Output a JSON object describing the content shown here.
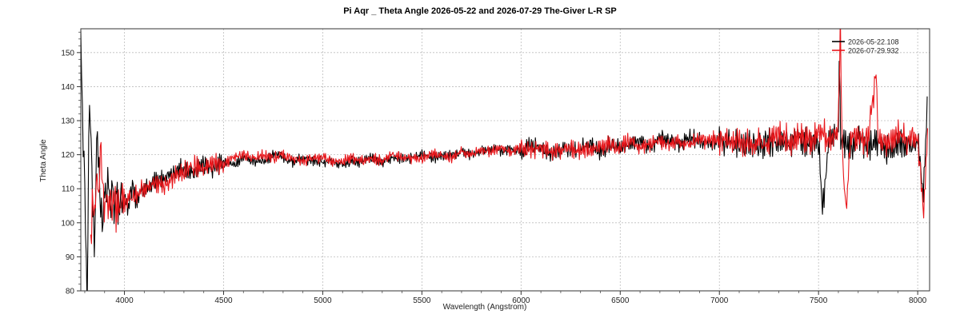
{
  "chart_data": {
    "type": "line",
    "title": "Pi Aqr _ Theta Angle 2026-05-22  and 2026-07-29 The-Giver L-R SP",
    "xlabel": "Wavelength (Angstrom)",
    "ylabel": "Theta Angle",
    "xlim": [
      3780,
      8060
    ],
    "ylim": [
      80,
      157
    ],
    "xticks": [
      4000,
      4500,
      5000,
      5500,
      6000,
      6500,
      7000,
      7500,
      8000
    ],
    "yticks": [
      80,
      90,
      100,
      110,
      120,
      130,
      140,
      150
    ],
    "grid": true,
    "legend_position": "top-right",
    "series": [
      {
        "name": "2026-05-22.108",
        "color": "#000000",
        "points": [
          [
            3780,
            157
          ],
          [
            3790,
            128
          ],
          [
            3800,
            112
          ],
          [
            3810,
            80
          ],
          [
            3815,
            80
          ],
          [
            3820,
            131
          ],
          [
            3830,
            131
          ],
          [
            3840,
            104
          ],
          [
            3850,
            91
          ],
          [
            3860,
            126
          ],
          [
            3870,
            118
          ],
          [
            3880,
            104
          ],
          [
            3890,
            97
          ],
          [
            3900,
            112
          ],
          [
            3910,
            106
          ],
          [
            3920,
            114
          ],
          [
            3930,
            103
          ],
          [
            3940,
            111
          ],
          [
            3950,
            102
          ],
          [
            3960,
            113
          ],
          [
            3970,
            104
          ],
          [
            3980,
            110
          ],
          [
            3990,
            103
          ],
          [
            4000,
            108
          ],
          [
            4020,
            104
          ],
          [
            4040,
            111
          ],
          [
            4060,
            106
          ],
          [
            4080,
            110
          ],
          [
            4100,
            109
          ],
          [
            4150,
            112
          ],
          [
            4200,
            113
          ],
          [
            4250,
            115
          ],
          [
            4300,
            116
          ],
          [
            4350,
            115
          ],
          [
            4400,
            117
          ],
          [
            4450,
            116
          ],
          [
            4500,
            118
          ],
          [
            4550,
            117
          ],
          [
            4600,
            119
          ],
          [
            4650,
            118
          ],
          [
            4700,
            118
          ],
          [
            4750,
            120
          ],
          [
            4800,
            119
          ],
          [
            4850,
            118
          ],
          [
            4900,
            119
          ],
          [
            4950,
            118
          ],
          [
            5000,
            118
          ],
          [
            5050,
            118
          ],
          [
            5100,
            117
          ],
          [
            5150,
            118
          ],
          [
            5200,
            118
          ],
          [
            5250,
            119
          ],
          [
            5300,
            118
          ],
          [
            5350,
            119
          ],
          [
            5400,
            119
          ],
          [
            5450,
            119
          ],
          [
            5500,
            120
          ],
          [
            5550,
            119
          ],
          [
            5600,
            120
          ],
          [
            5650,
            120
          ],
          [
            5700,
            121
          ],
          [
            5750,
            120
          ],
          [
            5800,
            121
          ],
          [
            5850,
            122
          ],
          [
            5900,
            121
          ],
          [
            5950,
            122
          ],
          [
            6000,
            121
          ],
          [
            6050,
            123
          ],
          [
            6100,
            122
          ],
          [
            6150,
            120
          ],
          [
            6200,
            122
          ],
          [
            6250,
            121
          ],
          [
            6300,
            122
          ],
          [
            6350,
            123
          ],
          [
            6400,
            121
          ],
          [
            6450,
            123
          ],
          [
            6500,
            122
          ],
          [
            6550,
            123
          ],
          [
            6600,
            124
          ],
          [
            6650,
            122
          ],
          [
            6700,
            125
          ],
          [
            6750,
            124
          ],
          [
            6800,
            123
          ],
          [
            6850,
            125
          ],
          [
            6900,
            124
          ],
          [
            6950,
            123
          ],
          [
            7000,
            124
          ],
          [
            7050,
            124
          ],
          [
            7100,
            123
          ],
          [
            7150,
            124
          ],
          [
            7200,
            122
          ],
          [
            7250,
            124
          ],
          [
            7300,
            124
          ],
          [
            7350,
            123
          ],
          [
            7400,
            125
          ],
          [
            7450,
            123
          ],
          [
            7500,
            124
          ],
          [
            7520,
            103
          ],
          [
            7550,
            124
          ],
          [
            7600,
            126
          ],
          [
            7605,
            158
          ],
          [
            7610,
            125
          ],
          [
            7650,
            122
          ],
          [
            7700,
            125
          ],
          [
            7750,
            122
          ],
          [
            7800,
            124
          ],
          [
            7850,
            121
          ],
          [
            7900,
            124
          ],
          [
            7950,
            122
          ],
          [
            8000,
            124
          ],
          [
            8030,
            108
          ],
          [
            8050,
            140
          ]
        ]
      },
      {
        "name": "2026-07-29.932",
        "color": "#e8161b",
        "points": [
          [
            3830,
            92
          ],
          [
            3840,
            111
          ],
          [
            3850,
            100
          ],
          [
            3860,
            113
          ],
          [
            3870,
            106
          ],
          [
            3880,
            125
          ],
          [
            3890,
            110
          ],
          [
            3900,
            104
          ],
          [
            3910,
            112
          ],
          [
            3920,
            103
          ],
          [
            3930,
            108
          ],
          [
            3940,
            103
          ],
          [
            3950,
            109
          ],
          [
            3960,
            102
          ],
          [
            3970,
            107
          ],
          [
            3980,
            104
          ],
          [
            3990,
            109
          ],
          [
            4000,
            106
          ],
          [
            4050,
            108
          ],
          [
            4100,
            110
          ],
          [
            4150,
            112
          ],
          [
            4200,
            111
          ],
          [
            4250,
            114
          ],
          [
            4300,
            115
          ],
          [
            4350,
            117
          ],
          [
            4400,
            116
          ],
          [
            4450,
            118
          ],
          [
            4500,
            117
          ],
          [
            4550,
            119
          ],
          [
            4600,
            120
          ],
          [
            4650,
            119
          ],
          [
            4700,
            120
          ],
          [
            4750,
            119
          ],
          [
            4800,
            120
          ],
          [
            4850,
            119
          ],
          [
            4900,
            118
          ],
          [
            4950,
            119
          ],
          [
            5000,
            119
          ],
          [
            5050,
            118
          ],
          [
            5100,
            118
          ],
          [
            5150,
            119
          ],
          [
            5200,
            118
          ],
          [
            5250,
            119
          ],
          [
            5300,
            118
          ],
          [
            5350,
            120
          ],
          [
            5400,
            119
          ],
          [
            5450,
            119
          ],
          [
            5500,
            119
          ],
          [
            5550,
            120
          ],
          [
            5600,
            120
          ],
          [
            5650,
            119
          ],
          [
            5700,
            121
          ],
          [
            5750,
            120
          ],
          [
            5800,
            121
          ],
          [
            5850,
            121
          ],
          [
            5900,
            122
          ],
          [
            5950,
            121
          ],
          [
            6000,
            122
          ],
          [
            6050,
            121
          ],
          [
            6100,
            122
          ],
          [
            6150,
            121
          ],
          [
            6200,
            121
          ],
          [
            6250,
            122
          ],
          [
            6300,
            121
          ],
          [
            6350,
            122
          ],
          [
            6400,
            122
          ],
          [
            6450,
            123
          ],
          [
            6500,
            122
          ],
          [
            6550,
            124
          ],
          [
            6600,
            122
          ],
          [
            6650,
            123
          ],
          [
            6700,
            124
          ],
          [
            6750,
            123
          ],
          [
            6800,
            124
          ],
          [
            6850,
            123
          ],
          [
            6900,
            125
          ],
          [
            6950,
            124
          ],
          [
            7000,
            125
          ],
          [
            7050,
            123
          ],
          [
            7100,
            124
          ],
          [
            7150,
            123
          ],
          [
            7200,
            124
          ],
          [
            7250,
            123
          ],
          [
            7300,
            126
          ],
          [
            7350,
            124
          ],
          [
            7400,
            125
          ],
          [
            7450,
            124
          ],
          [
            7500,
            126
          ],
          [
            7550,
            125
          ],
          [
            7600,
            127
          ],
          [
            7610,
            158
          ],
          [
            7620,
            120
          ],
          [
            7640,
            102
          ],
          [
            7660,
            124
          ],
          [
            7700,
            126
          ],
          [
            7750,
            124
          ],
          [
            7790,
            145
          ],
          [
            7800,
            125
          ],
          [
            7850,
            123
          ],
          [
            7900,
            127
          ],
          [
            7950,
            124
          ],
          [
            8000,
            126
          ],
          [
            8030,
            103
          ],
          [
            8050,
            128
          ]
        ]
      }
    ]
  }
}
